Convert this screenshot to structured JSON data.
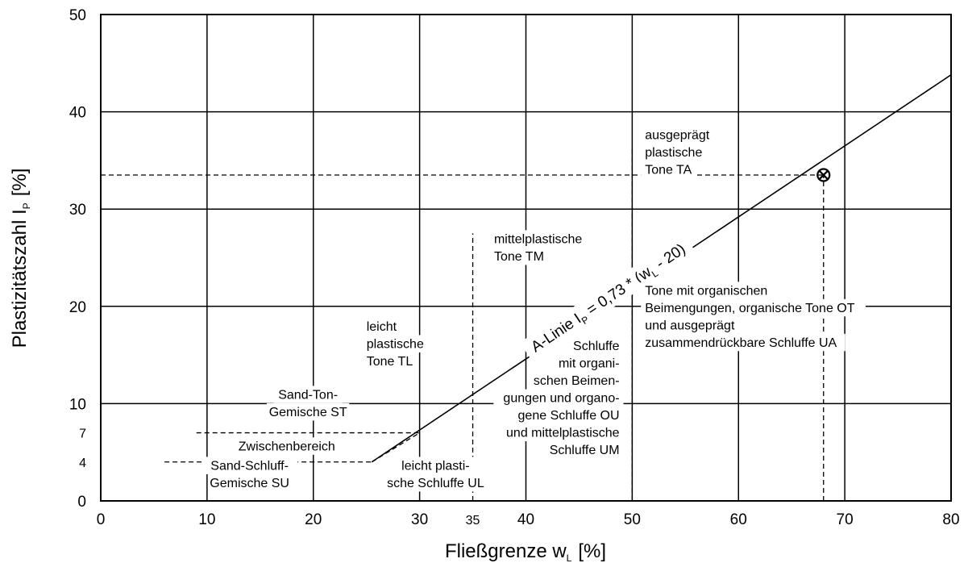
{
  "chart_data": {
    "type": "scatter",
    "title": "",
    "xlim": [
      0,
      80
    ],
    "ylim": [
      0,
      50
    ],
    "x_ticks": [
      0,
      10,
      20,
      30,
      35,
      40,
      50,
      60,
      70,
      80
    ],
    "y_ticks": [
      0,
      4,
      7,
      10,
      20,
      30,
      40,
      50
    ],
    "x_grid": [
      10,
      20,
      30,
      40,
      50,
      60,
      70
    ],
    "y_grid": [
      10,
      20,
      30,
      40
    ],
    "grid": true,
    "xlabel": {
      "main": "Fließgrenze w",
      "sub": "L",
      "unit": "[%]"
    },
    "ylabel": {
      "main": "Plastizitätszahl I",
      "sub": "P",
      "unit": "[%]"
    },
    "a_line": {
      "label_pre": "A-Linie I",
      "label_sub_P": "P",
      "label_mid": " = 0,73 * (w",
      "label_sub_L": "L",
      "label_post": " - 20)",
      "points": [
        [
          25.5,
          4
        ],
        [
          80,
          43.8
        ]
      ]
    },
    "lower_segment": [
      [
        25.5,
        4
      ],
      [
        30,
        7
      ]
    ],
    "dashed_lines": [
      {
        "from": [
          6,
          4
        ],
        "to": [
          25.5,
          4
        ]
      },
      {
        "from": [
          9,
          7
        ],
        "to": [
          30,
          7
        ]
      },
      {
        "from": [
          35,
          0
        ],
        "to": [
          35,
          27.5
        ]
      },
      {
        "from": [
          50,
          0
        ],
        "to": [
          50,
          36.5
        ]
      },
      {
        "from": [
          68,
          0
        ],
        "to": [
          68,
          33.5
        ]
      },
      {
        "from": [
          0,
          33.5
        ],
        "to": [
          68,
          33.5
        ]
      }
    ],
    "marker": {
      "x": 68,
      "y": 33.5,
      "symbol": "⊗"
    },
    "regions": [
      {
        "lines": [
          "ausgeprägt",
          "plastische",
          "Tone TA"
        ],
        "x": 51.2,
        "y": 37.2,
        "anchor": "start"
      },
      {
        "lines": [
          "mittelplastische",
          "Tone TM"
        ],
        "x": 37,
        "y": 26.5,
        "anchor": "start"
      },
      {
        "lines": [
          "Tone mit organischen",
          "Beimengungen, organische Tone OT",
          "und ausgeprägt",
          "zusammendrückbare Schluffe UA"
        ],
        "x": 51.2,
        "y": 21.2,
        "anchor": "start"
      },
      {
        "lines": [
          "leicht",
          "plastische",
          "Tone TL"
        ],
        "x": 25,
        "y": 17.5,
        "anchor": "start"
      },
      {
        "lines": [
          "Schluffe",
          "mit organi-",
          "schen Beimen-",
          "gungen und organo-",
          "gene Schluffe OU",
          "und mittelplastische",
          "Schluffe UM"
        ],
        "x": 48.8,
        "y": 15.5,
        "anchor": "end"
      },
      {
        "lines": [
          "Sand-Ton-",
          "Gemische ST"
        ],
        "x": 19.5,
        "y": 10.5,
        "anchor": "middle"
      },
      {
        "lines": [
          "Zwischenbereich"
        ],
        "x": 17.5,
        "y": 5.2,
        "anchor": "middle"
      },
      {
        "lines": [
          "Sand-Schluff-",
          "Gemische SU"
        ],
        "x": 14,
        "y": 3.2,
        "anchor": "middle"
      },
      {
        "lines": [
          "leicht plasti-",
          "sche Schluffe UL"
        ],
        "x": 31.5,
        "y": 3.2,
        "anchor": "middle"
      }
    ]
  }
}
